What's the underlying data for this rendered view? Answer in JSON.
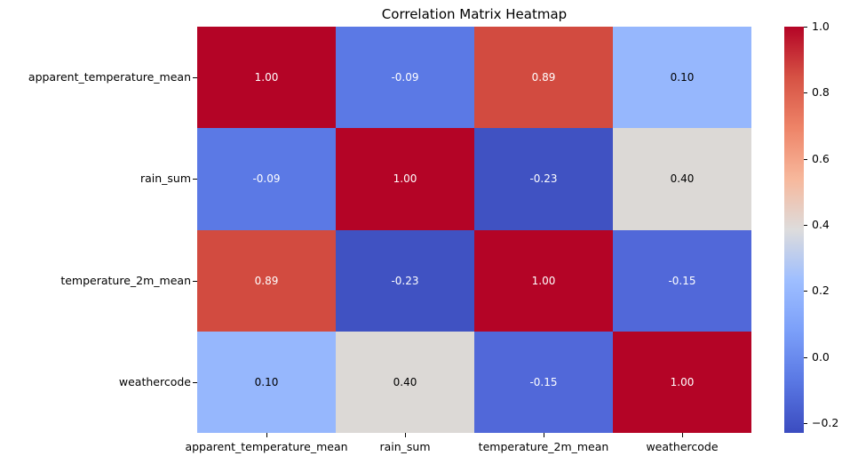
{
  "title": "Correlation Matrix Heatmap",
  "chart_data": {
    "type": "heatmap",
    "title": "Correlation Matrix Heatmap",
    "colormap": "coolwarm",
    "vmin": -0.23,
    "vmax": 1.0,
    "categories": [
      "apparent_temperature_mean",
      "rain_sum",
      "temperature_2m_mean",
      "weathercode"
    ],
    "x_tick_labels": [
      "apparent_temperature_mean",
      "rain_sum",
      "temperature_2m_mean",
      "weathercode"
    ],
    "y_tick_labels": [
      "apparent_temperature_mean",
      "rain_sum",
      "temperature_2m_mean",
      "weathercode"
    ],
    "matrix": [
      [
        1.0,
        -0.09,
        0.89,
        0.1
      ],
      [
        -0.09,
        1.0,
        -0.23,
        0.4
      ],
      [
        0.89,
        -0.23,
        1.0,
        -0.15
      ],
      [
        0.1,
        0.4,
        -0.15,
        1.0
      ]
    ],
    "annotations": [
      [
        "1.00",
        "-0.09",
        "0.89",
        "0.10"
      ],
      [
        "-0.09",
        "1.00",
        "-0.23",
        "0.40"
      ],
      [
        "0.89",
        "-0.23",
        "1.00",
        "-0.15"
      ],
      [
        "0.10",
        "0.40",
        "-0.15",
        "1.00"
      ]
    ],
    "cell_colors": [
      [
        "#b40426",
        "#5b79e5",
        "#d24b40",
        "#96b7fd"
      ],
      [
        "#5b79e5",
        "#b40426",
        "#4052c2",
        "#dcd9d6"
      ],
      [
        "#d24b40",
        "#4052c2",
        "#b40426",
        "#5168d9"
      ],
      [
        "#96b7fd",
        "#dcd9d6",
        "#5168d9",
        "#b40426"
      ]
    ],
    "annotation_text_colors": {
      "dark": "#000000",
      "light": "#ffffff"
    },
    "grid": false,
    "colorbar": {
      "position": "right",
      "gradient_stops": [
        "#b40426",
        "#d65244",
        "#ee8468",
        "#f7b89c",
        "#dddcdc",
        "#9ebeff",
        "#7b9ff9",
        "#5977e3",
        "#3b4cc0"
      ],
      "ticks": [
        {
          "label": "1.0",
          "value": 1.0
        },
        {
          "label": "0.8",
          "value": 0.8
        },
        {
          "label": "0.6",
          "value": 0.6
        },
        {
          "label": "0.4",
          "value": 0.4
        },
        {
          "label": "0.2",
          "value": 0.2
        },
        {
          "label": "0.0",
          "value": 0.0
        },
        {
          "label": "−0.2",
          "value": -0.2
        }
      ]
    }
  }
}
